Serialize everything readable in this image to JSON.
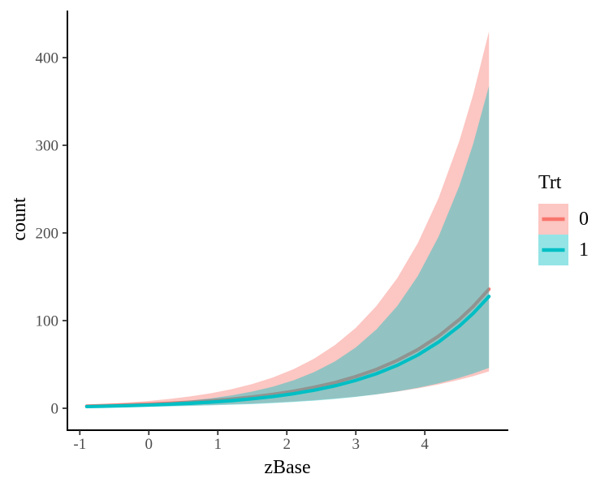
{
  "chart_data": {
    "type": "line",
    "title": "",
    "xlabel": "zBase",
    "ylabel": "count",
    "grid": false,
    "xlim": [
      -1.18,
      5.21
    ],
    "ylim": [
      -25,
      453.7
    ],
    "x_ticks": [
      "-1",
      "0",
      "1",
      "2",
      "3",
      "4"
    ],
    "x_tick_values": [
      -1,
      0,
      1,
      2,
      3,
      4
    ],
    "y_ticks": [
      "0",
      "100",
      "200",
      "300",
      "400"
    ],
    "y_tick_values": [
      0,
      100,
      200,
      300,
      400
    ],
    "ribbon_opacity": 0.42,
    "colors": {
      "trt0": "#F8766D",
      "trt1": "#00BFC4",
      "tick_label": "#4d4d4d",
      "axis": "#000000"
    },
    "legend": {
      "title": "Trt",
      "position": "right",
      "entries": [
        {
          "label": "0",
          "color": "#F8766D"
        },
        {
          "label": "1",
          "color": "#00BFC4"
        }
      ]
    },
    "x": [
      -0.9,
      -0.6,
      -0.3,
      0,
      0.3,
      0.6,
      0.9,
      1.2,
      1.5,
      1.8,
      2.1,
      2.4,
      2.7,
      3.0,
      3.3,
      3.6,
      3.9,
      4.2,
      4.5,
      4.7,
      4.93
    ],
    "series": [
      {
        "name": "0",
        "color": "#F8766D",
        "mean": [
          2.5,
          3.1,
          3.8,
          4.6,
          5.7,
          7.0,
          8.6,
          10.5,
          12.9,
          15.9,
          19.5,
          24.0,
          29.4,
          36.2,
          44.4,
          54.6,
          67.0,
          82.4,
          101.2,
          116.1,
          135.9
        ],
        "lower": [
          1.3,
          1.6,
          1.9,
          2.2,
          2.7,
          3.2,
          3.8,
          4.6,
          5.4,
          6.5,
          7.8,
          9.3,
          11.1,
          13.3,
          15.9,
          19.0,
          22.7,
          27.2,
          32.5,
          36.6,
          42.0
        ],
        "upper": [
          4.1,
          5.2,
          6.6,
          8.3,
          10.6,
          13.5,
          17.1,
          21.8,
          27.7,
          35.2,
          44.7,
          56.8,
          72.2,
          91.8,
          116.8,
          148.4,
          188.7,
          239.9,
          304.9,
          357.8,
          430.0
        ]
      },
      {
        "name": "1",
        "color": "#00BFC4",
        "mean": [
          1.9,
          2.4,
          3.0,
          3.7,
          4.6,
          5.7,
          7.0,
          8.7,
          10.8,
          13.4,
          16.6,
          20.7,
          25.6,
          31.8,
          39.5,
          49.0,
          60.8,
          75.5,
          93.7,
          108.2,
          127.6
        ],
        "lower": [
          1.0,
          1.2,
          1.5,
          1.8,
          2.2,
          2.7,
          3.3,
          4.0,
          4.8,
          5.9,
          7.2,
          8.7,
          10.6,
          13.0,
          15.8,
          19.2,
          23.4,
          28.5,
          34.7,
          39.6,
          46.1
        ],
        "upper": [
          2.4,
          3.1,
          4.0,
          5.2,
          6.8,
          8.8,
          11.4,
          14.7,
          19.1,
          24.7,
          32.0,
          41.4,
          53.6,
          69.5,
          90.0,
          116.6,
          151.1,
          195.9,
          253.7,
          301.4,
          367.7
        ]
      }
    ]
  }
}
